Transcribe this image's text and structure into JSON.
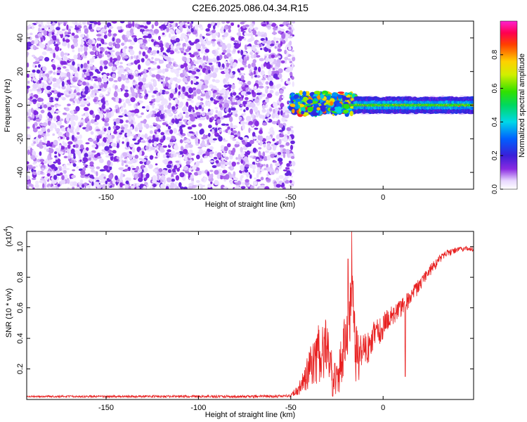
{
  "title": "C2E6.2025.086.04.34.R15",
  "chart_data": [
    {
      "type": "heatmap",
      "xlabel": "Height of straight line (km)",
      "ylabel": "Frequency (Hz)",
      "xlim": [
        -193,
        49
      ],
      "ylim": [
        -50,
        50
      ],
      "xticks": [
        -150,
        -100,
        -50,
        0
      ],
      "yticks": [
        -40,
        -20,
        0,
        20,
        40
      ],
      "colorbar": {
        "label": "Normalized spectral amplitude",
        "range": [
          0,
          1
        ],
        "ticks": [
          0.0,
          0.2,
          0.4,
          0.6,
          0.8
        ]
      },
      "features": [
        {
          "region": "noise",
          "x_range": [
            -193,
            -50
          ],
          "y_range": [
            -50,
            50
          ],
          "amplitude_range": [
            0.0,
            0.15
          ]
        },
        {
          "region": "carrier_turbulent",
          "x_range": [
            -50,
            -15
          ],
          "y_center": 0,
          "y_spread": [
            -6,
            8
          ],
          "amplitude_range": [
            0.2,
            0.9
          ]
        },
        {
          "region": "carrier_clear",
          "x_range": [
            -15,
            49
          ],
          "y_center": 0,
          "y_spread": [
            -2,
            2
          ],
          "amplitude_range": [
            0.4,
            1.0
          ]
        }
      ]
    },
    {
      "type": "line",
      "xlabel": "Height of straight line (km)",
      "ylabel": "SNR (10 * v/v)",
      "yscale_label": "(x10",
      "yscale_exp": "4",
      "xlim": [
        -193,
        49
      ],
      "ylim": [
        0,
        1.1
      ],
      "xticks": [
        -150,
        -100,
        -50,
        0
      ],
      "yticks": [
        0.2,
        0.4,
        0.6,
        0.8,
        1.0
      ],
      "color": "#e82020",
      "profile": {
        "x": [
          -193,
          -60,
          -50,
          -45,
          -42,
          -40,
          -38,
          -35,
          -33,
          -30,
          -27,
          -25,
          -22,
          -20,
          -18,
          -16,
          -15,
          -13,
          -10,
          -7,
          -5,
          -2,
          0,
          3,
          5,
          8,
          10,
          13,
          15,
          18,
          20,
          22,
          25,
          28,
          30,
          33,
          35,
          38,
          40,
          43,
          45,
          49
        ],
        "y": [
          0.02,
          0.02,
          0.025,
          0.08,
          0.15,
          0.2,
          0.25,
          0.3,
          0.35,
          0.32,
          0.15,
          0.12,
          0.28,
          0.42,
          0.58,
          0.62,
          0.3,
          0.28,
          0.32,
          0.35,
          0.42,
          0.44,
          0.48,
          0.52,
          0.56,
          0.58,
          0.6,
          0.64,
          0.68,
          0.72,
          0.76,
          0.8,
          0.84,
          0.88,
          0.91,
          0.94,
          0.96,
          0.97,
          0.98,
          0.985,
          0.99,
          0.98
        ]
      },
      "noise_amplitude": {
        "x": [
          -193,
          -50,
          -45,
          -40,
          -35,
          -30,
          -25,
          -20,
          -15,
          -10,
          0,
          10,
          20,
          30,
          40,
          49
        ],
        "a": [
          0.01,
          0.015,
          0.08,
          0.22,
          0.35,
          0.35,
          0.2,
          0.35,
          0.35,
          0.18,
          0.14,
          0.1,
          0.08,
          0.05,
          0.03,
          0.02
        ]
      },
      "spikes": [
        {
          "x": -17,
          "y": 1.1
        },
        {
          "x": -19,
          "y": 0.92
        },
        {
          "x": 12,
          "y": 0.15
        }
      ]
    }
  ]
}
